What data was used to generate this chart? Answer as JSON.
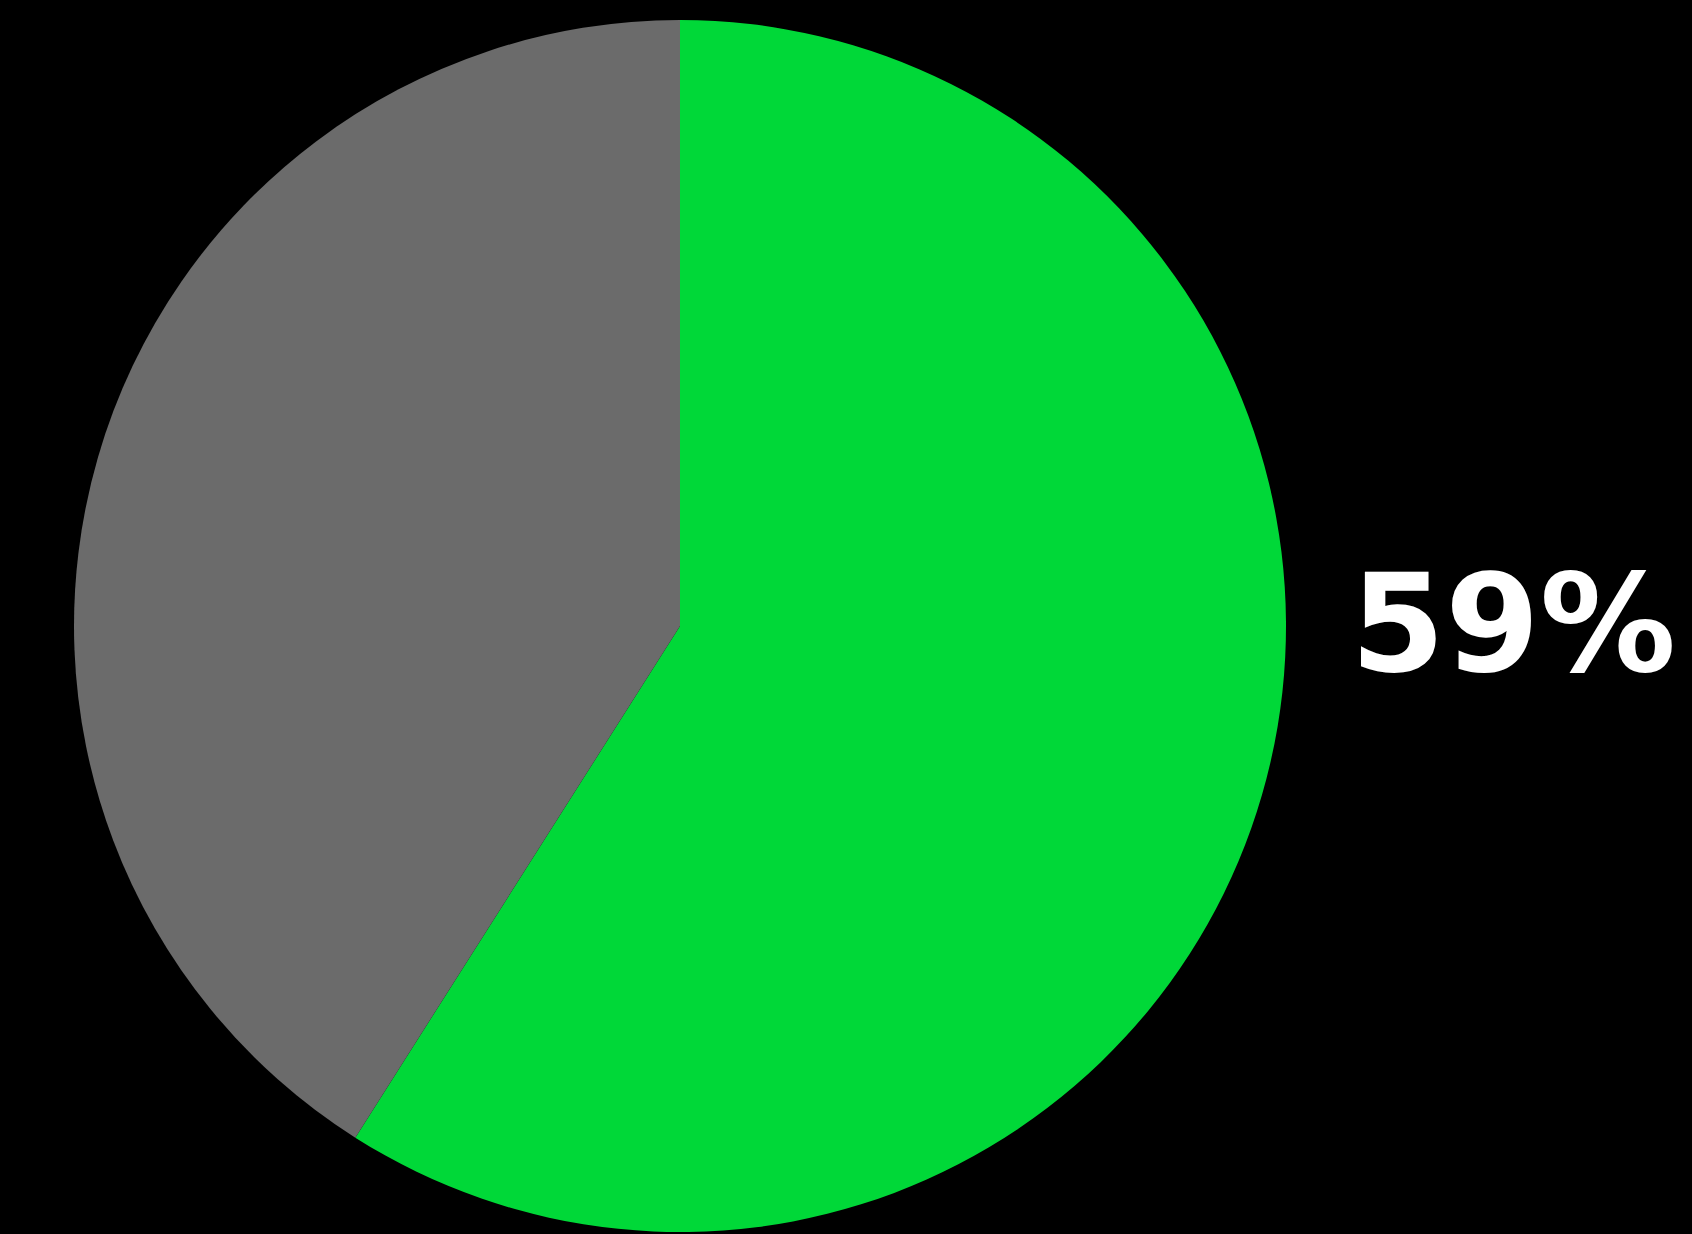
{
  "chart_data": {
    "type": "pie",
    "categories": [
      null,
      null
    ],
    "values": [
      59,
      41
    ],
    "colors": [
      "#00d838",
      "#6b6b6b"
    ],
    "value_labels": [
      "59%",
      null
    ]
  }
}
